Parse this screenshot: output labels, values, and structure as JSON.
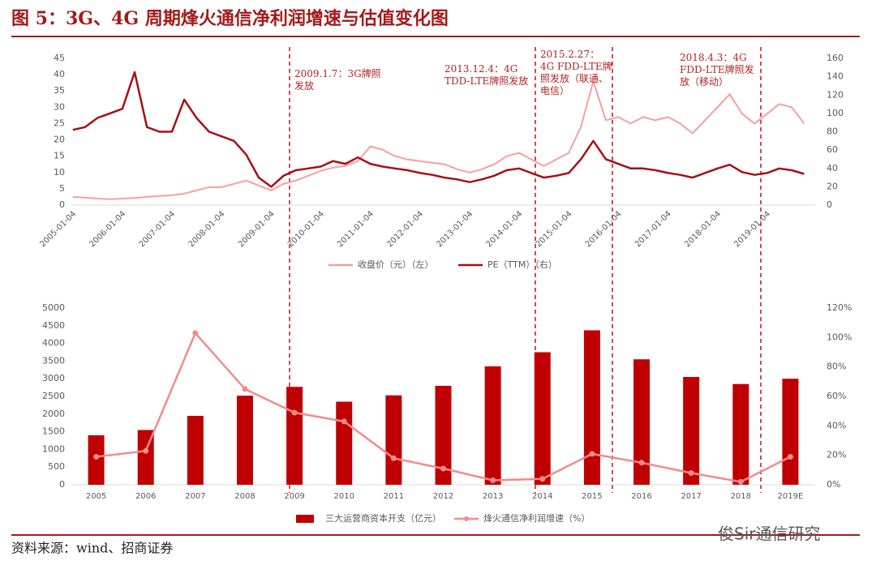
{
  "title": "图 5：3G、4G 周期烽火通信净利润增速与估值变化图",
  "source": "资料来源：wind、招商证券",
  "watermark": "俊Sir通信研究",
  "chart_data": [
    {
      "type": "line",
      "annotations": [
        "2009.1.7：3G牌照发放",
        "2013.12.4：4G TDD-LTE牌照发放",
        "2015.2.27：4G FDD-LTE牌照发放（联通、电信）",
        "2018.4.3：4G FDD-LTE牌照发放（移动）"
      ],
      "xlim": [
        "2005-01-04",
        "2020-01-04"
      ],
      "xticks": [
        "2005-01-04",
        "2006-01-04",
        "2007-01-04",
        "2008-01-04",
        "2009-01-04",
        "2010-01-04",
        "2011-01-04",
        "2012-01-04",
        "2013-01-04",
        "2014-01-04",
        "2015-01-04",
        "2016-01-04",
        "2017-01-04",
        "2018-01-04",
        "2019-01-04"
      ],
      "ylim": [
        0,
        45
      ],
      "yticks": [
        0,
        5,
        10,
        15,
        20,
        25,
        30,
        35,
        40,
        45
      ],
      "y2lim": [
        0,
        160
      ],
      "y2ticks": [
        0,
        20,
        40,
        60,
        80,
        100,
        120,
        140,
        160
      ],
      "x": [
        "2005-01",
        "2005-04",
        "2005-07",
        "2005-10",
        "2006-01",
        "2006-04",
        "2006-07",
        "2006-10",
        "2007-01",
        "2007-04",
        "2007-07",
        "2007-10",
        "2008-01",
        "2008-04",
        "2008-07",
        "2008-10",
        "2009-01",
        "2009-04",
        "2009-07",
        "2009-10",
        "2010-01",
        "2010-04",
        "2010-07",
        "2010-10",
        "2011-01",
        "2011-04",
        "2011-07",
        "2011-10",
        "2012-01",
        "2012-04",
        "2012-07",
        "2012-10",
        "2013-01",
        "2013-04",
        "2013-07",
        "2013-10",
        "2014-01",
        "2014-04",
        "2014-07",
        "2014-10",
        "2015-01",
        "2015-04",
        "2015-07",
        "2015-10",
        "2016-01",
        "2016-04",
        "2016-07",
        "2016-10",
        "2017-01",
        "2017-04",
        "2017-07",
        "2017-10",
        "2018-01",
        "2018-04",
        "2018-07",
        "2018-10",
        "2019-01",
        "2019-04",
        "2019-07",
        "2019-10"
      ],
      "series": [
        {
          "name": "收盘价（元）（左）",
          "color": "#f4a0a0",
          "values": [
            2.5,
            2.3,
            2.0,
            1.8,
            2.0,
            2.2,
            2.5,
            2.8,
            3.0,
            3.5,
            4.5,
            5.5,
            5.5,
            6.5,
            7.5,
            6.0,
            4.5,
            6.5,
            7.5,
            9.0,
            10.5,
            11.5,
            12.0,
            13.5,
            18.0,
            17.0,
            15.0,
            14.0,
            13.5,
            13.0,
            12.5,
            11.0,
            10.0,
            11.0,
            12.5,
            15.0,
            16.0,
            14.0,
            12.0,
            14.0,
            16.0,
            24.0,
            38.0,
            26.0,
            27.0,
            25.0,
            27.0,
            26.0,
            27.0,
            25.0,
            22.0,
            26.0,
            30.0,
            34.0,
            28.0,
            25.0,
            28.0,
            31.0,
            30.0,
            25.0
          ]
        },
        {
          "name": "PE（TTM）（右）",
          "color": "#a50f15",
          "axis": "y2",
          "values": [
            82,
            85,
            95,
            100,
            105,
            145,
            85,
            80,
            80,
            115,
            95,
            80,
            75,
            70,
            55,
            30,
            20,
            32,
            38,
            40,
            42,
            48,
            45,
            52,
            45,
            42,
            40,
            38,
            35,
            33,
            30,
            28,
            25,
            28,
            32,
            38,
            40,
            35,
            30,
            32,
            35,
            50,
            70,
            50,
            45,
            40,
            40,
            38,
            35,
            33,
            30,
            35,
            40,
            44,
            36,
            33,
            35,
            40,
            38,
            34
          ]
        }
      ]
    },
    {
      "type": "bar-line",
      "categories": [
        "2005",
        "2006",
        "2007",
        "2008",
        "2009",
        "2010",
        "2011",
        "2012",
        "2013",
        "2014",
        "2015",
        "2016",
        "2017",
        "2018",
        "2019E"
      ],
      "ylim": [
        0,
        5000
      ],
      "yticks": [
        0,
        500,
        1000,
        1500,
        2000,
        2500,
        3000,
        3500,
        4000,
        4500,
        5000
      ],
      "y2lim": [
        0,
        120
      ],
      "y2ticks": [
        {
          "value": 0,
          "label": "0%"
        },
        {
          "value": 20,
          "label": "20%"
        },
        {
          "value": 40,
          "label": "40%"
        },
        {
          "value": 60,
          "label": "60%"
        },
        {
          "value": 80,
          "label": "80%"
        },
        {
          "value": 100,
          "label": "100%"
        },
        {
          "value": 120,
          "label": "120%"
        }
      ],
      "series": [
        {
          "name": "三大运营商资本开支（亿元）",
          "color": "#c00000",
          "type": "bar",
          "values": [
            1400,
            1550,
            1950,
            2520,
            2770,
            2350,
            2530,
            2800,
            3350,
            3750,
            4370,
            3550,
            3050,
            2850,
            3000
          ]
        },
        {
          "name": "烽火通信净利润增速（%）",
          "color": "#f28b8b",
          "type": "line",
          "axis": "y2",
          "values": [
            19,
            23,
            103,
            65,
            49,
            43,
            18,
            11,
            3,
            4,
            21,
            15,
            8,
            2,
            19
          ]
        }
      ]
    }
  ]
}
